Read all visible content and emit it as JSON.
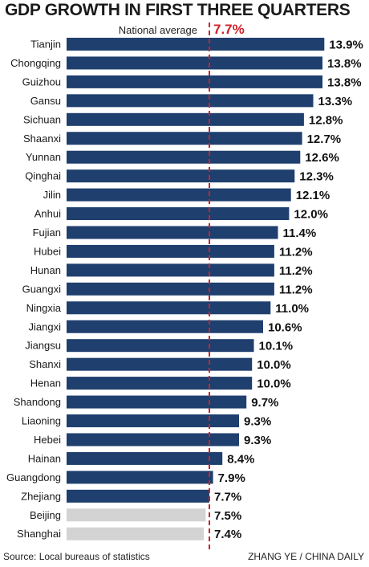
{
  "header": {
    "title": "GDP GROWTH IN FIRST THREE QUARTERS",
    "national_average_label": "National average",
    "national_average_value": "7.7%"
  },
  "footer": {
    "source": "Source: Local bureaus of statistics",
    "credit": "ZHANG YE / CHINA DAILY"
  },
  "colors": {
    "bar_above": "#1f3f6e",
    "bar_below": "#d3d3d3",
    "average_line": "#d0202a"
  },
  "chart_data": {
    "type": "bar",
    "orientation": "horizontal",
    "title": "GDP GROWTH IN FIRST THREE QUARTERS",
    "unit": "%",
    "reference_line": {
      "label": "National average",
      "value": 7.7
    },
    "categories": [
      "Tianjin",
      "Chongqing",
      "Guizhou",
      "Gansu",
      "Sichuan",
      "Shaanxi",
      "Yunnan",
      "Qinghai",
      "Jilin",
      "Anhui",
      "Fujian",
      "Hubei",
      "Hunan",
      "Guangxi",
      "Ningxia",
      "Jiangxi",
      "Jiangsu",
      "Shanxi",
      "Henan",
      "Shandong",
      "Liaoning",
      "Hebei",
      "Hainan",
      "Guangdong",
      "Zhejiang",
      "Beijing",
      "Shanghai"
    ],
    "values": [
      13.9,
      13.8,
      13.8,
      13.3,
      12.8,
      12.7,
      12.6,
      12.3,
      12.1,
      12.0,
      11.4,
      11.2,
      11.2,
      11.2,
      11.0,
      10.6,
      10.1,
      10.0,
      10.0,
      9.7,
      9.3,
      9.3,
      8.4,
      7.9,
      7.7,
      7.5,
      7.4
    ],
    "value_labels": [
      "13.9%",
      "13.8%",
      "13.8%",
      "13.3%",
      "12.8%",
      "12.7%",
      "12.6%",
      "12.3%",
      "12.1%",
      "12.0%",
      "11.4%",
      "11.2%",
      "11.2%",
      "11.2%",
      "11.0%",
      "10.6%",
      "10.1%",
      "10.0%",
      "10.0%",
      "9.7%",
      "9.3%",
      "9.3%",
      "8.4%",
      "7.9%",
      "7.7%",
      "7.5%",
      "7.4%"
    ],
    "highlight_below_average": [
      "Beijing",
      "Shanghai"
    ]
  }
}
